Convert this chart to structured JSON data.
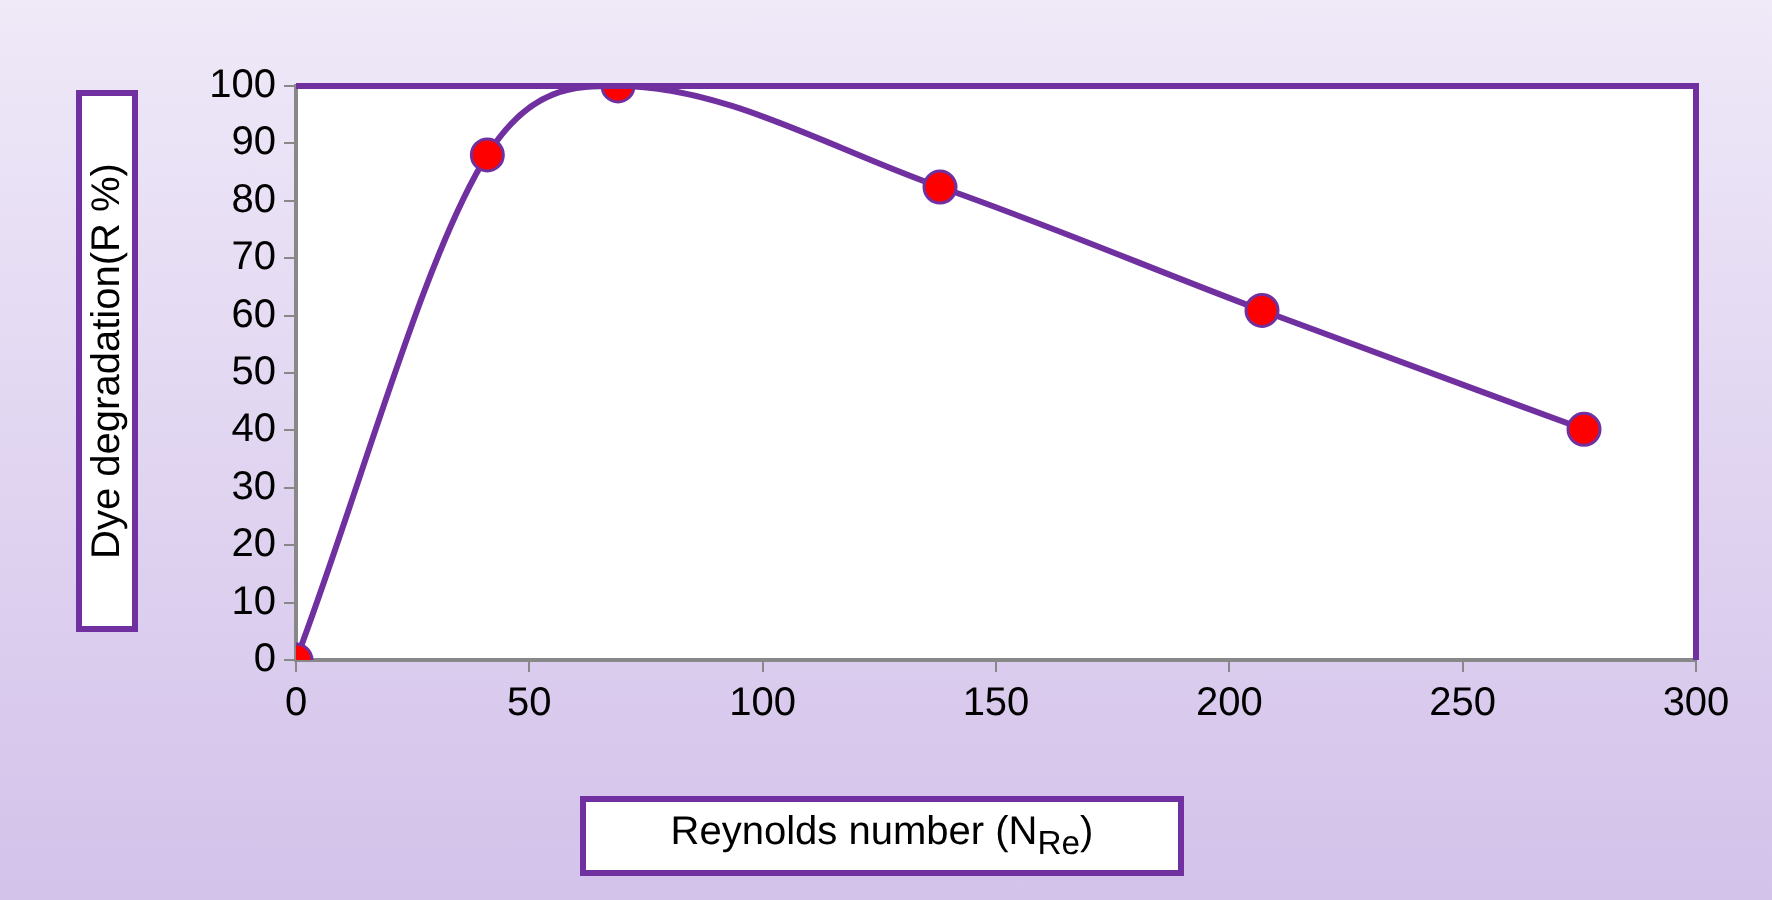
{
  "chart_data": {
    "type": "line",
    "xlabel": "Reynolds number (N$_{Re}$)",
    "ylabel": "Dye degradation(R %)",
    "x": [
      0,
      41,
      69,
      138,
      207,
      276
    ],
    "series": [
      {
        "color": "#7030a0",
        "colors": [
          "#ff0000",
          "#ff0000",
          "#ff0000",
          "#ff0000",
          "#ff0000",
          "#ff0000"
        ],
        "values": [
          0,
          88,
          100,
          82.4,
          60.9,
          40.2
        ]
      }
    ],
    "xlim": [
      0,
      300
    ],
    "xticks": [
      0,
      50,
      100,
      150,
      200,
      250,
      300
    ],
    "ylim": [
      0,
      100
    ],
    "yticks": [
      0,
      10,
      20,
      30,
      40,
      50,
      60,
      70,
      80,
      90,
      100
    ],
    "grid": false,
    "legend": false,
    "marker": "circle",
    "line_style": "solid"
  }
}
